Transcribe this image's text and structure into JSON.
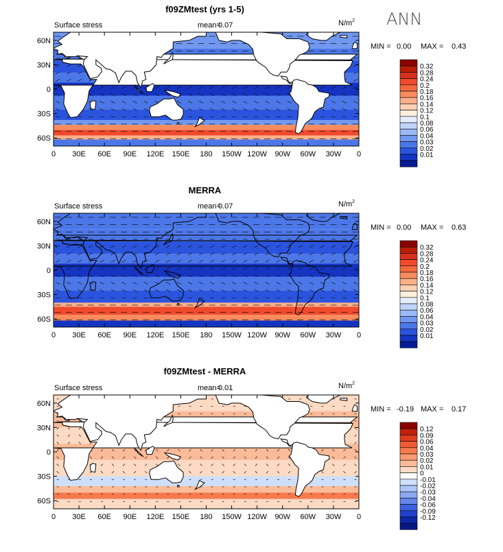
{
  "figure": {
    "season_label": "ANN"
  },
  "chart_data": [
    {
      "type": "heatmap",
      "title": "f09ZMtest (yrs 1-5)",
      "variable_label": "Surface stress",
      "mean_label": "mean=",
      "mean_value": "0.07",
      "units": "N/m",
      "units_sup": "2",
      "min_label": "MIN =",
      "min_value": "0.00",
      "max_label": "MAX =",
      "max_value": "0.43",
      "x_ticks": [
        "0",
        "30E",
        "60E",
        "90E",
        "120E",
        "150E",
        "180",
        "150W",
        "120W",
        "90W",
        "60W",
        "30W",
        "0"
      ],
      "y_ticks": [
        "60N",
        "30N",
        "0",
        "30S",
        "60S"
      ],
      "y_tick_values": [
        60,
        30,
        0,
        -30,
        -60
      ],
      "x_range_deg": [
        0,
        360
      ],
      "y_range_deg": [
        -70,
        70
      ],
      "colorbar_levels": [
        "0.32",
        "0.28",
        "0.24",
        "0.2",
        "0.18",
        "0.16",
        "0.14",
        "0.12",
        "0.1",
        "0.08",
        "0.06",
        "0.04",
        "0.03",
        "0.02",
        "0.01"
      ],
      "colorbar_colors": [
        "#8b0000",
        "#b81d08",
        "#d7301f",
        "#ef4a2c",
        "#f4683d",
        "#f88c5e",
        "#fbb08a",
        "#fcd2b3",
        "#fdeede",
        "#e3edfd",
        "#bfd4fb",
        "#9ab9f6",
        "#7198f0",
        "#4c77e8",
        "#2b54de",
        "#1534c2",
        "#071a96"
      ],
      "zonal_bands": [
        {
          "lat_top": 70,
          "lat_bottom": 50,
          "color": "#7198f0"
        },
        {
          "lat_top": 50,
          "lat_bottom": 35,
          "color": "#4c77e8"
        },
        {
          "lat_top": 35,
          "lat_bottom": 20,
          "color": "#2b54de"
        },
        {
          "lat_top": 20,
          "lat_bottom": 8,
          "color": "#4c77e8"
        },
        {
          "lat_top": 8,
          "lat_bottom": -8,
          "color": "#1534c2"
        },
        {
          "lat_top": -8,
          "lat_bottom": -25,
          "color": "#4c77e8"
        },
        {
          "lat_top": -25,
          "lat_bottom": -38,
          "color": "#2b54de"
        },
        {
          "lat_top": -38,
          "lat_bottom": -44,
          "color": "#7198f0"
        },
        {
          "lat_top": -44,
          "lat_bottom": -50,
          "color": "#f88c5e"
        },
        {
          "lat_top": -50,
          "lat_bottom": -57,
          "color": "#ef4a2c"
        },
        {
          "lat_top": -57,
          "lat_bottom": -62,
          "color": "#fbb08a"
        },
        {
          "lat_top": -62,
          "lat_bottom": -70,
          "color": "#4c77e8"
        }
      ]
    },
    {
      "type": "heatmap",
      "title": "MERRA",
      "variable_label": "Surface stress",
      "mean_label": "mean=",
      "mean_value": "0.07",
      "units": "N/m",
      "units_sup": "2",
      "min_label": "MIN =",
      "min_value": "0.00",
      "max_label": "MAX =",
      "max_value": "0.63",
      "x_ticks": [
        "0",
        "30E",
        "60E",
        "90E",
        "120E",
        "150E",
        "180",
        "150W",
        "120W",
        "90W",
        "60W",
        "30W",
        "0"
      ],
      "y_ticks": [
        "60N",
        "30N",
        "0",
        "30S",
        "60S"
      ],
      "y_tick_values": [
        60,
        30,
        0,
        -30,
        -60
      ],
      "x_range_deg": [
        0,
        360
      ],
      "y_range_deg": [
        -70,
        70
      ],
      "colorbar_levels": [
        "0.32",
        "0.28",
        "0.24",
        "0.2",
        "0.18",
        "0.16",
        "0.14",
        "0.12",
        "0.1",
        "0.08",
        "0.06",
        "0.04",
        "0.03",
        "0.02",
        "0.01"
      ],
      "colorbar_colors": [
        "#8b0000",
        "#b81d08",
        "#d7301f",
        "#ef4a2c",
        "#f4683d",
        "#f88c5e",
        "#fbb08a",
        "#fcd2b3",
        "#fdeede",
        "#e3edfd",
        "#bfd4fb",
        "#9ab9f6",
        "#7198f0",
        "#4c77e8",
        "#2b54de",
        "#1534c2",
        "#071a96"
      ],
      "zonal_bands": [
        {
          "lat_top": 70,
          "lat_bottom": 50,
          "color": "#4c77e8"
        },
        {
          "lat_top": 50,
          "lat_bottom": 35,
          "color": "#4c77e8"
        },
        {
          "lat_top": 35,
          "lat_bottom": 20,
          "color": "#2b54de"
        },
        {
          "lat_top": 20,
          "lat_bottom": 8,
          "color": "#4c77e8"
        },
        {
          "lat_top": 8,
          "lat_bottom": -8,
          "color": "#1534c2"
        },
        {
          "lat_top": -8,
          "lat_bottom": -25,
          "color": "#4c77e8"
        },
        {
          "lat_top": -25,
          "lat_bottom": -40,
          "color": "#2b54de"
        },
        {
          "lat_top": -40,
          "lat_bottom": -45,
          "color": "#fbb08a"
        },
        {
          "lat_top": -45,
          "lat_bottom": -55,
          "color": "#ef4a2c"
        },
        {
          "lat_top": -55,
          "lat_bottom": -62,
          "color": "#f88c5e"
        },
        {
          "lat_top": -62,
          "lat_bottom": -70,
          "color": "#1534c2"
        }
      ]
    },
    {
      "type": "heatmap",
      "title": "f09ZMtest - MERRA",
      "variable_label": "Surface stress",
      "mean_label": "mean=",
      "mean_value": "0.01",
      "units": "N/m",
      "units_sup": "2",
      "min_label": "MIN =",
      "min_value": "-0.19",
      "max_label": "MAX =",
      "max_value": "0.17",
      "x_ticks": [
        "0",
        "30E",
        "60E",
        "90E",
        "120E",
        "150E",
        "180",
        "150W",
        "120W",
        "90W",
        "60W",
        "30W",
        "0"
      ],
      "y_ticks": [
        "60N",
        "30N",
        "0",
        "30S",
        "60S"
      ],
      "y_tick_values": [
        60,
        30,
        0,
        -30,
        -60
      ],
      "x_range_deg": [
        0,
        360
      ],
      "y_range_deg": [
        -70,
        70
      ],
      "colorbar_levels": [
        "0.12",
        "0.09",
        "0.06",
        "0.04",
        "0.03",
        "0.02",
        "0.01",
        "0",
        "-0.01",
        "-0.02",
        "-0.03",
        "-0.04",
        "-0.06",
        "-0.09",
        "-0.12"
      ],
      "colorbar_colors": [
        "#8b0000",
        "#c0200d",
        "#e03b20",
        "#f25a35",
        "#f67a4d",
        "#f99a70",
        "#fbbb98",
        "#fcdac3",
        "#ffffff",
        "#cfdffb",
        "#adc6f7",
        "#8aa9f2",
        "#6386ec",
        "#3e60e2",
        "#2140cc",
        "#0f27a8",
        "#061683"
      ],
      "zonal_bands": [
        {
          "lat_top": 70,
          "lat_bottom": 50,
          "color": "#fcdac3"
        },
        {
          "lat_top": 50,
          "lat_bottom": 30,
          "color": "#fbbb98"
        },
        {
          "lat_top": 30,
          "lat_bottom": 10,
          "color": "#fcdac3"
        },
        {
          "lat_top": 10,
          "lat_bottom": -10,
          "color": "#fbbb98"
        },
        {
          "lat_top": -10,
          "lat_bottom": -30,
          "color": "#fcdac3"
        },
        {
          "lat_top": -30,
          "lat_bottom": -42,
          "color": "#cfdffb"
        },
        {
          "lat_top": -42,
          "lat_bottom": -50,
          "color": "#fbbb98"
        },
        {
          "lat_top": -50,
          "lat_bottom": -58,
          "color": "#f67a4d"
        },
        {
          "lat_top": -58,
          "lat_bottom": -70,
          "color": "#fcdac3"
        }
      ]
    }
  ]
}
